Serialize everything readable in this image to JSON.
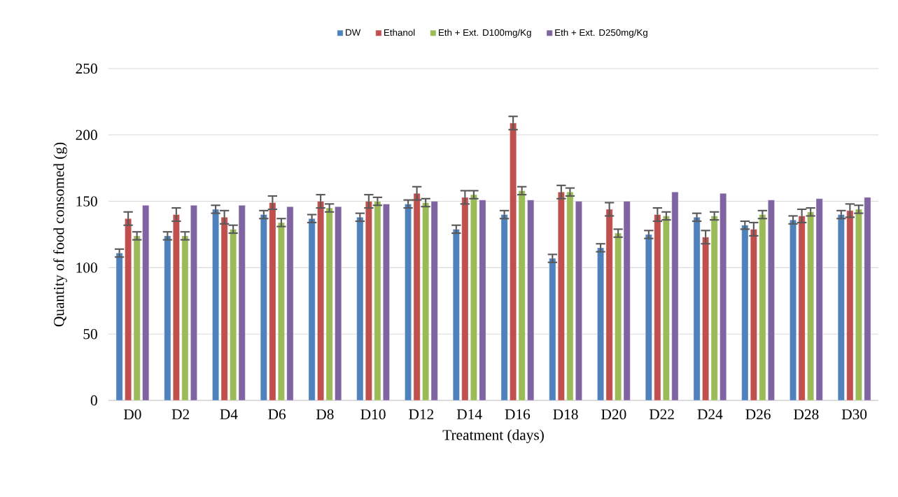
{
  "chart_data": {
    "type": "bar",
    "xlabel": "Treatment (days)",
    "ylabel": "Quantity of food consomed (g)",
    "categories": [
      "D0",
      "D2",
      "D4",
      "D6",
      "D8",
      "D10",
      "D12",
      "D14",
      "D16",
      "D18",
      "D20",
      "D22",
      "D24",
      "D26",
      "D28",
      "D30"
    ],
    "series": [
      {
        "name": "DW",
        "color": "#4f81bd",
        "values": [
          111,
          124,
          144,
          140,
          137,
          138,
          148,
          129,
          140,
          107,
          115,
          125,
          138,
          132,
          136,
          140
        ],
        "errors": [
          3,
          3,
          3,
          3,
          3,
          3,
          3,
          3,
          3,
          3,
          3,
          3,
          3,
          3,
          3,
          3
        ]
      },
      {
        "name": "Ethanol",
        "color": "#c0504d",
        "values": [
          137,
          140,
          138,
          149,
          150,
          150,
          156,
          153,
          209,
          157,
          144,
          140,
          123,
          129,
          139,
          143
        ],
        "errors": [
          5,
          5,
          5,
          5,
          5,
          5,
          5,
          5,
          5,
          5,
          5,
          5,
          5,
          5,
          5,
          5
        ]
      },
      {
        "name": "Eth + Ext. D100mg/Kg",
        "color": "#9bbb59",
        "values": [
          124,
          124,
          129,
          134,
          145,
          150,
          149,
          155,
          158,
          157,
          126,
          139,
          139,
          140,
          142,
          144
        ],
        "errors": [
          3,
          3,
          3,
          3,
          3,
          3,
          3,
          3,
          3,
          3,
          3,
          3,
          3,
          3,
          3,
          3
        ]
      },
      {
        "name": "Eth + Ext. D250mg/Kg",
        "color": "#8064a2",
        "values": [
          147,
          147,
          147,
          146,
          146,
          148,
          150,
          151,
          151,
          150,
          150,
          157,
          156,
          151,
          152,
          153
        ]
      }
    ],
    "ylim": [
      0,
      250
    ],
    "yticks": [
      0,
      50,
      100,
      150,
      200,
      250
    ],
    "grid": "y",
    "legend": "top"
  }
}
